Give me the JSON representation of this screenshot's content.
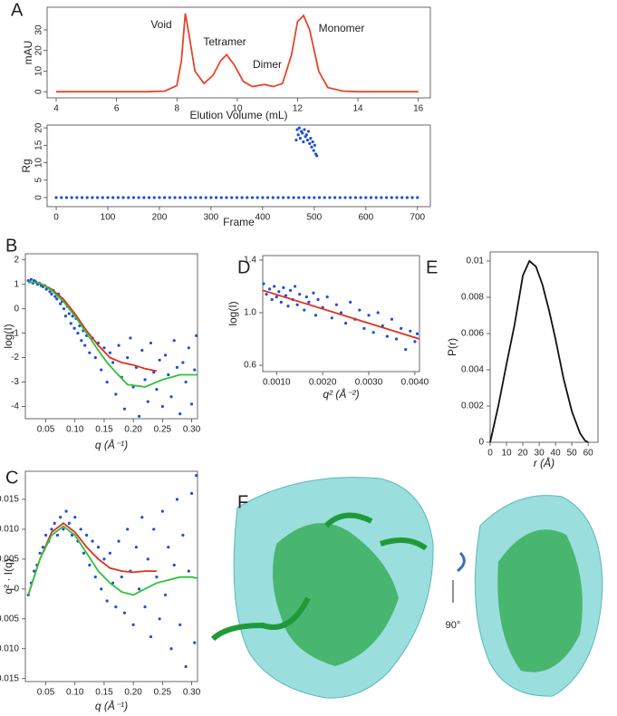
{
  "chart_data": [
    {
      "type": "line",
      "panel": "A",
      "x_label": "Elution Volume (mL)",
      "y_label": "mAU",
      "annotations": [
        "Void",
        "Tetramer",
        "Dimer",
        "Monomer"
      ],
      "xlim": [
        3.7,
        16.4
      ],
      "xticks": [
        4,
        6,
        8,
        10,
        12,
        14,
        16
      ],
      "ylim": [
        -3,
        41
      ],
      "yticks": [
        0,
        10,
        20,
        30
      ],
      "series": [
        {
          "type": "line",
          "color": "#e8432a",
          "x": [
            4,
            7,
            7.6,
            8.0,
            8.15,
            8.28,
            8.4,
            8.6,
            8.9,
            9.2,
            9.45,
            9.65,
            9.9,
            10.2,
            10.5,
            10.9,
            11.2,
            11.5,
            11.8,
            12.0,
            12.2,
            12.4,
            12.7,
            13.0,
            13.5,
            14,
            16
          ],
          "y": [
            0,
            0,
            0.3,
            3,
            15,
            38,
            28,
            10,
            4,
            8,
            15,
            18,
            13,
            5,
            2.5,
            3.5,
            2.5,
            4,
            18,
            34,
            37,
            30,
            10,
            2,
            0.3,
            0,
            0
          ]
        }
      ]
    },
    {
      "type": "scatter",
      "x_label": "Frame",
      "y_label": "Rg",
      "xlim": [
        -17.6,
        725
      ],
      "xticks": [
        0,
        100,
        200,
        300,
        400,
        500,
        600,
        700
      ],
      "ylim": [
        -2.6,
        20.8
      ],
      "yticks": [
        0,
        5,
        10,
        15,
        20
      ],
      "series": [
        {
          "type": "scatter",
          "color": "#1f4fd6",
          "x": [
            0,
            10,
            20,
            30,
            40,
            50,
            60,
            70,
            80,
            90,
            100,
            110,
            120,
            130,
            140,
            150,
            160,
            170,
            180,
            190,
            200,
            210,
            220,
            230,
            240,
            250,
            260,
            270,
            280,
            290,
            300,
            310,
            320,
            330,
            340,
            350,
            360,
            370,
            380,
            390,
            400,
            410,
            420,
            430,
            440,
            450,
            460,
            470,
            480,
            490,
            500,
            510,
            520,
            530,
            540,
            550,
            560,
            570,
            580,
            590,
            600,
            610,
            620,
            630,
            640,
            650,
            660,
            670,
            680,
            690,
            700
          ],
          "y": [
            0,
            0,
            0,
            0,
            0,
            0,
            0,
            0,
            0,
            0,
            0,
            0,
            0,
            0,
            0,
            0,
            0,
            0,
            0,
            0,
            0,
            0,
            0,
            0,
            0,
            0,
            0,
            0,
            0,
            0,
            0,
            0,
            0,
            0,
            0,
            0,
            0,
            0,
            0,
            0,
            0,
            0,
            0,
            0,
            0,
            0,
            0,
            0,
            0,
            0,
            0,
            0,
            0,
            0,
            0,
            0,
            0,
            0,
            0,
            0,
            0,
            0,
            0,
            0,
            0,
            0,
            0,
            0,
            0,
            0,
            0
          ]
        },
        {
          "type": "scatter",
          "color": "#1f4fd6",
          "x": [
            465,
            467,
            469,
            471,
            473,
            475,
            477,
            479,
            481,
            483,
            485,
            487,
            489,
            491,
            493,
            495,
            497,
            499,
            501,
            503,
            505
          ],
          "y": [
            16.5,
            19.5,
            18,
            20,
            17,
            19,
            18.5,
            16,
            19.5,
            17.5,
            18,
            16.5,
            19,
            15.5,
            17,
            14.5,
            16,
            13.5,
            15,
            12.5,
            12
          ]
        }
      ]
    },
    {
      "type": "scatter",
      "panel": "B",
      "x_label": "q (Å⁻¹)",
      "y_label": "log(I)",
      "xlim": [
        0.015,
        0.31
      ],
      "xticks": [
        0.05,
        {
          "value": 0.1,
          "label": "0.10"
        },
        0.15,
        {
          "value": 0.2,
          "label": "0.20"
        },
        0.25,
        {
          "value": 0.3,
          "label": "0.30"
        }
      ],
      "ylim": [
        -4.5,
        2.25
      ],
      "yticks": [
        2,
        1,
        0,
        -1,
        -2,
        -3,
        -4
      ],
      "series": [
        {
          "type": "scatter",
          "color": "#1f4fd6",
          "x": [
            0.02,
            0.022,
            0.025,
            0.028,
            0.03,
            0.033,
            0.036,
            0.039,
            0.042,
            0.045,
            0.048,
            0.051,
            0.054,
            0.057,
            0.06,
            0.063,
            0.066,
            0.069,
            0.072,
            0.075,
            0.078,
            0.081,
            0.084,
            0.087,
            0.09,
            0.093,
            0.096,
            0.099,
            0.102,
            0.105,
            0.108,
            0.111,
            0.114,
            0.117,
            0.12,
            0.125,
            0.13,
            0.135,
            0.14,
            0.145,
            0.15,
            0.155,
            0.16,
            0.165,
            0.17,
            0.175,
            0.18,
            0.185,
            0.19,
            0.195,
            0.2,
            0.205,
            0.21,
            0.215,
            0.22,
            0.225,
            0.23,
            0.235,
            0.24,
            0.245,
            0.25,
            0.255,
            0.26,
            0.265,
            0.27,
            0.275,
            0.28,
            0.285,
            0.29,
            0.295,
            0.3,
            0.305,
            0.308
          ],
          "y": [
            1.15,
            1.1,
            1.2,
            1.05,
            1.15,
            1.1,
            1.0,
            1.05,
            0.95,
            0.9,
            0.95,
            0.8,
            0.85,
            0.7,
            0.6,
            0.75,
            0.5,
            0.4,
            0.6,
            0.2,
            0.3,
            0.0,
            -0.3,
            0.1,
            -0.2,
            -0.6,
            -0.3,
            -0.8,
            -0.4,
            -1.0,
            -0.7,
            -1.3,
            -0.9,
            -1.5,
            -1.1,
            -1.8,
            -1.2,
            -2.0,
            -1.4,
            -2.5,
            -1.6,
            -3.0,
            -1.8,
            -2.2,
            -3.5,
            -1.5,
            -2.8,
            -4.1,
            -2.0,
            -1.2,
            -3.2,
            -2.4,
            -4.4,
            -1.7,
            -2.9,
            -3.8,
            -1.4,
            -2.6,
            -3.3,
            -2.1,
            -4.0,
            -1.9,
            -2.7,
            -3.6,
            -1.3,
            -2.4,
            -4.3,
            -2.2,
            -3.0,
            -1.6,
            -3.9,
            -2.5,
            -1.1
          ]
        },
        {
          "type": "line",
          "color": "#e0301e",
          "x": [
            0.02,
            0.04,
            0.06,
            0.08,
            0.1,
            0.12,
            0.14,
            0.16,
            0.18,
            0.2,
            0.22,
            0.24
          ],
          "y": [
            1.1,
            1.05,
            0.8,
            0.4,
            -0.2,
            -0.9,
            -1.5,
            -2.0,
            -2.2,
            -2.3,
            -2.45,
            -2.55
          ]
        },
        {
          "type": "line",
          "color": "#2fc23a",
          "x": [
            0.02,
            0.04,
            0.06,
            0.08,
            0.1,
            0.12,
            0.14,
            0.155,
            0.17,
            0.19,
            0.22,
            0.25,
            0.28,
            0.31
          ],
          "y": [
            1.1,
            1.05,
            0.75,
            0.3,
            -0.3,
            -1.0,
            -1.7,
            -2.2,
            -2.6,
            -3.1,
            -3.2,
            -2.9,
            -2.7,
            -2.7
          ]
        }
      ]
    },
    {
      "type": "scatter",
      "panel": "C",
      "x_label": "q (Å⁻¹)",
      "y_label": "q² · I(q)",
      "xlim": [
        0.015,
        0.31
      ],
      "xticks": [
        0.05,
        {
          "value": 0.1,
          "label": "0.10"
        },
        0.15,
        {
          "value": 0.2,
          "label": "0.20"
        },
        0.25,
        {
          "value": 0.3,
          "label": "0.30"
        }
      ],
      "ylim": [
        -0.0155,
        0.0197
      ],
      "yticks": [
        0.015,
        {
          "value": 0.01,
          "label": "0.010"
        },
        0.005,
        0,
        -0.005,
        {
          "value": -0.01,
          "label": "-0.010"
        },
        -0.015
      ],
      "series": [
        {
          "type": "scatter",
          "color": "#1f4fd6",
          "x": [
            0.02,
            0.025,
            0.03,
            0.035,
            0.04,
            0.045,
            0.05,
            0.055,
            0.06,
            0.065,
            0.07,
            0.075,
            0.08,
            0.085,
            0.09,
            0.095,
            0.1,
            0.105,
            0.11,
            0.115,
            0.12,
            0.125,
            0.13,
            0.135,
            0.14,
            0.145,
            0.15,
            0.155,
            0.16,
            0.165,
            0.17,
            0.175,
            0.18,
            0.185,
            0.19,
            0.195,
            0.2,
            0.205,
            0.21,
            0.215,
            0.22,
            0.225,
            0.23,
            0.235,
            0.24,
            0.245,
            0.25,
            0.255,
            0.26,
            0.265,
            0.27,
            0.275,
            0.28,
            0.285,
            0.29,
            0.295,
            0.3,
            0.305,
            0.308
          ],
          "y": [
            -0.001,
            0.001,
            0.003,
            0.004,
            0.006,
            0.007,
            0.009,
            0.008,
            0.01,
            0.011,
            0.009,
            0.012,
            0.01,
            0.013,
            0.011,
            0.009,
            0.012,
            0.008,
            0.01,
            0.006,
            0.009,
            0.004,
            0.008,
            0.002,
            0.007,
            0.0,
            0.005,
            -0.002,
            0.006,
            0.001,
            -0.003,
            0.008,
            0.002,
            -0.004,
            0.01,
            0.003,
            -0.006,
            0.007,
            0.0,
            0.012,
            -0.003,
            0.005,
            -0.008,
            0.01,
            0.002,
            -0.005,
            0.013,
            -0.001,
            0.007,
            -0.01,
            0.004,
            0.015,
            -0.006,
            0.009,
            -0.013,
            0.003,
            0.016,
            -0.009,
            0.019
          ]
        },
        {
          "type": "line",
          "color": "#e0301e",
          "x": [
            0.02,
            0.04,
            0.06,
            0.08,
            0.1,
            0.12,
            0.14,
            0.16,
            0.18,
            0.2,
            0.22,
            0.24
          ],
          "y": [
            -0.001,
            0.005,
            0.0095,
            0.011,
            0.0095,
            0.007,
            0.005,
            0.0035,
            0.003,
            0.0028,
            0.003,
            0.003
          ]
        },
        {
          "type": "line",
          "color": "#2fc23a",
          "x": [
            0.02,
            0.04,
            0.06,
            0.08,
            0.1,
            0.12,
            0.14,
            0.16,
            0.18,
            0.2,
            0.22,
            0.24,
            0.26,
            0.28,
            0.3,
            0.31
          ],
          "y": [
            -0.001,
            0.005,
            0.009,
            0.0105,
            0.009,
            0.006,
            0.003,
            0.001,
            -0.0005,
            -0.001,
            0,
            0.001,
            0.0015,
            0.002,
            0.002,
            0.0018
          ]
        }
      ]
    },
    {
      "type": "scatter",
      "panel": "D",
      "x_label": "q² (Å⁻²)",
      "y_label": "log(I)",
      "xlim": [
        0.0007,
        0.0041
      ],
      "xticks": [
        {
          "value": 0.001,
          "label": "0.0010"
        },
        {
          "value": 0.002,
          "label": "0.0020"
        },
        {
          "value": 0.003,
          "label": "0.0030"
        },
        {
          "value": 0.004,
          "label": "0.0040"
        }
      ],
      "ylim": [
        0.552,
        1.434
      ],
      "yticks": [
        1.4,
        {
          "value": 1.0,
          "label": "1.0"
        },
        0.6
      ],
      "series": [
        {
          "type": "scatter",
          "color": "#1f4fd6",
          "x": [
            0.00072,
            0.00078,
            0.00085,
            0.0009,
            0.00095,
            0.001,
            0.00105,
            0.0011,
            0.00115,
            0.0012,
            0.00125,
            0.0013,
            0.00135,
            0.0014,
            0.00145,
            0.0015,
            0.0016,
            0.00165,
            0.0017,
            0.0018,
            0.00185,
            0.0019,
            0.002,
            0.0021,
            0.0022,
            0.0023,
            0.0024,
            0.0025,
            0.0026,
            0.0027,
            0.0028,
            0.0029,
            0.003,
            0.0031,
            0.0032,
            0.0033,
            0.0034,
            0.0035,
            0.0036,
            0.0037,
            0.0038,
            0.0039,
            0.004,
            0.00405
          ],
          "y": [
            1.22,
            1.14,
            1.18,
            1.1,
            1.2,
            1.12,
            1.16,
            1.08,
            1.19,
            1.13,
            1.05,
            1.17,
            1.1,
            1.2,
            1.06,
            1.14,
            1.02,
            1.12,
            1.08,
            1.15,
            0.98,
            1.1,
            1.04,
            1.12,
            0.96,
            1.06,
            1.0,
            0.92,
            1.08,
            0.95,
            1.02,
            0.88,
            0.98,
            0.85,
            1.0,
            0.9,
            0.82,
            0.95,
            0.8,
            0.88,
            0.72,
            0.86,
            0.78,
            0.84
          ]
        },
        {
          "type": "line",
          "color": "#e0301e",
          "x": [
            0.0007,
            0.0041
          ],
          "y": [
            1.17,
            0.8
          ]
        }
      ]
    },
    {
      "type": "line",
      "panel": "E",
      "x_label": "r (Å)",
      "y_label": "P(r)",
      "xlim": [
        0,
        66
      ],
      "xticks": [
        0,
        10,
        20,
        30,
        40,
        50,
        60
      ],
      "ylim": [
        0,
        0.0105
      ],
      "yticks": [
        0.01,
        0.008,
        0.006,
        0.004,
        0.002,
        0
      ],
      "series": [
        {
          "type": "line",
          "color": "#111",
          "x": [
            0,
            2,
            5,
            10,
            15,
            20,
            24,
            28,
            32,
            36,
            40,
            45,
            50,
            55,
            58,
            60
          ],
          "y": [
            0,
            0.0008,
            0.002,
            0.0043,
            0.0065,
            0.0092,
            0.01,
            0.0097,
            0.0087,
            0.0073,
            0.0057,
            0.0035,
            0.0017,
            0.0005,
            0.0001,
            0
          ]
        }
      ]
    }
  ],
  "structure": {
    "panel": "F",
    "rotation_label": "90°"
  }
}
